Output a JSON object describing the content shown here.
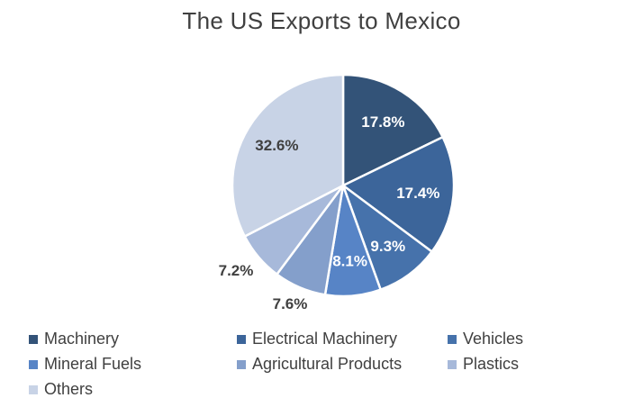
{
  "chart_data": {
    "type": "pie",
    "title": "The US Exports to Mexico",
    "slices": [
      {
        "label": "Machinery",
        "value": 17.8,
        "display": "17.8%",
        "color": "#335378"
      },
      {
        "label": "Electrical Machinery",
        "value": 17.4,
        "display": "17.4%",
        "color": "#3c659a"
      },
      {
        "label": "Vehicles",
        "value": 9.3,
        "display": "9.3%",
        "color": "#4672ab"
      },
      {
        "label": "Mineral Fuels",
        "value": 8.1,
        "display": "8.1%",
        "color": "#5784c6"
      },
      {
        "label": "Agricultural Products",
        "value": 7.6,
        "display": "7.6%",
        "color": "#849fcb"
      },
      {
        "label": "Plastics",
        "value": 7.2,
        "display": "7.2%",
        "color": "#a7b9da"
      },
      {
        "label": "Others",
        "value": 32.6,
        "display": "32.6%",
        "color": "#c8d3e6"
      }
    ],
    "legend_position": "bottom",
    "start_angle": "12 o'clock, clockwise"
  }
}
